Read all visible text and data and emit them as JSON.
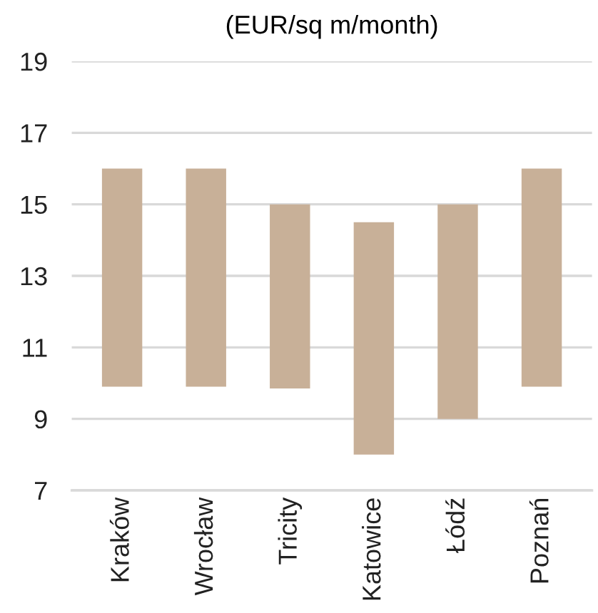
{
  "chart_data": {
    "type": "bar",
    "title": "(EUR/sq m/month)",
    "categories": [
      "Kraków",
      "Wrocław",
      "Tricity",
      "Katowice",
      "Łódź",
      "Poznań"
    ],
    "base": [
      9.9,
      9.9,
      9.85,
      8,
      9,
      9.9
    ],
    "values": [
      6.1,
      6.1,
      5.15,
      6.5,
      6,
      6.1
    ],
    "color": "#c8b098",
    "ylim": [
      7,
      19
    ],
    "yticks": [
      7,
      9,
      11,
      13,
      15,
      17,
      19
    ],
    "grid": "y"
  }
}
